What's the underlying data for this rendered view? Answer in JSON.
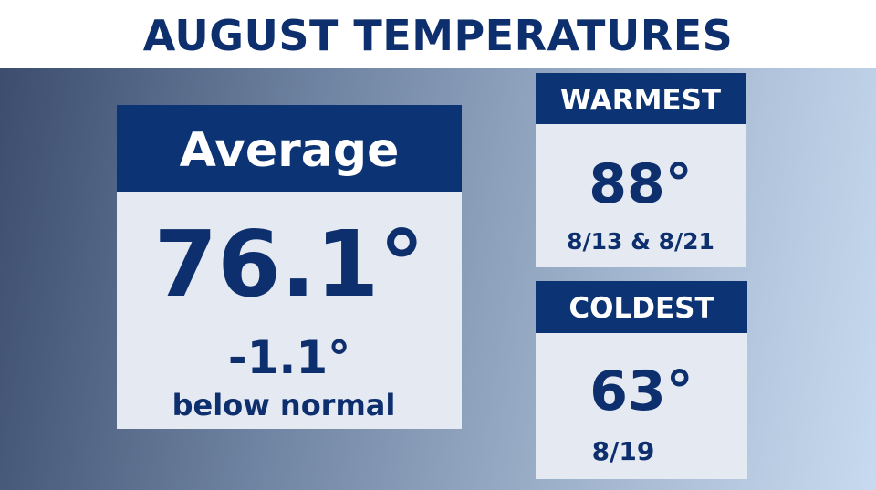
{
  "header": {
    "title": "AUGUST TEMPERATURES"
  },
  "average": {
    "label": "Average",
    "value": "76.1°",
    "departure": "-1.1°",
    "departure_note": "below normal"
  },
  "warmest": {
    "label": "WARMEST",
    "value": "88°",
    "dates": "8/13 & 8/21"
  },
  "coldest": {
    "label": "COLDEST",
    "value": "63°",
    "dates": "8/19"
  }
}
